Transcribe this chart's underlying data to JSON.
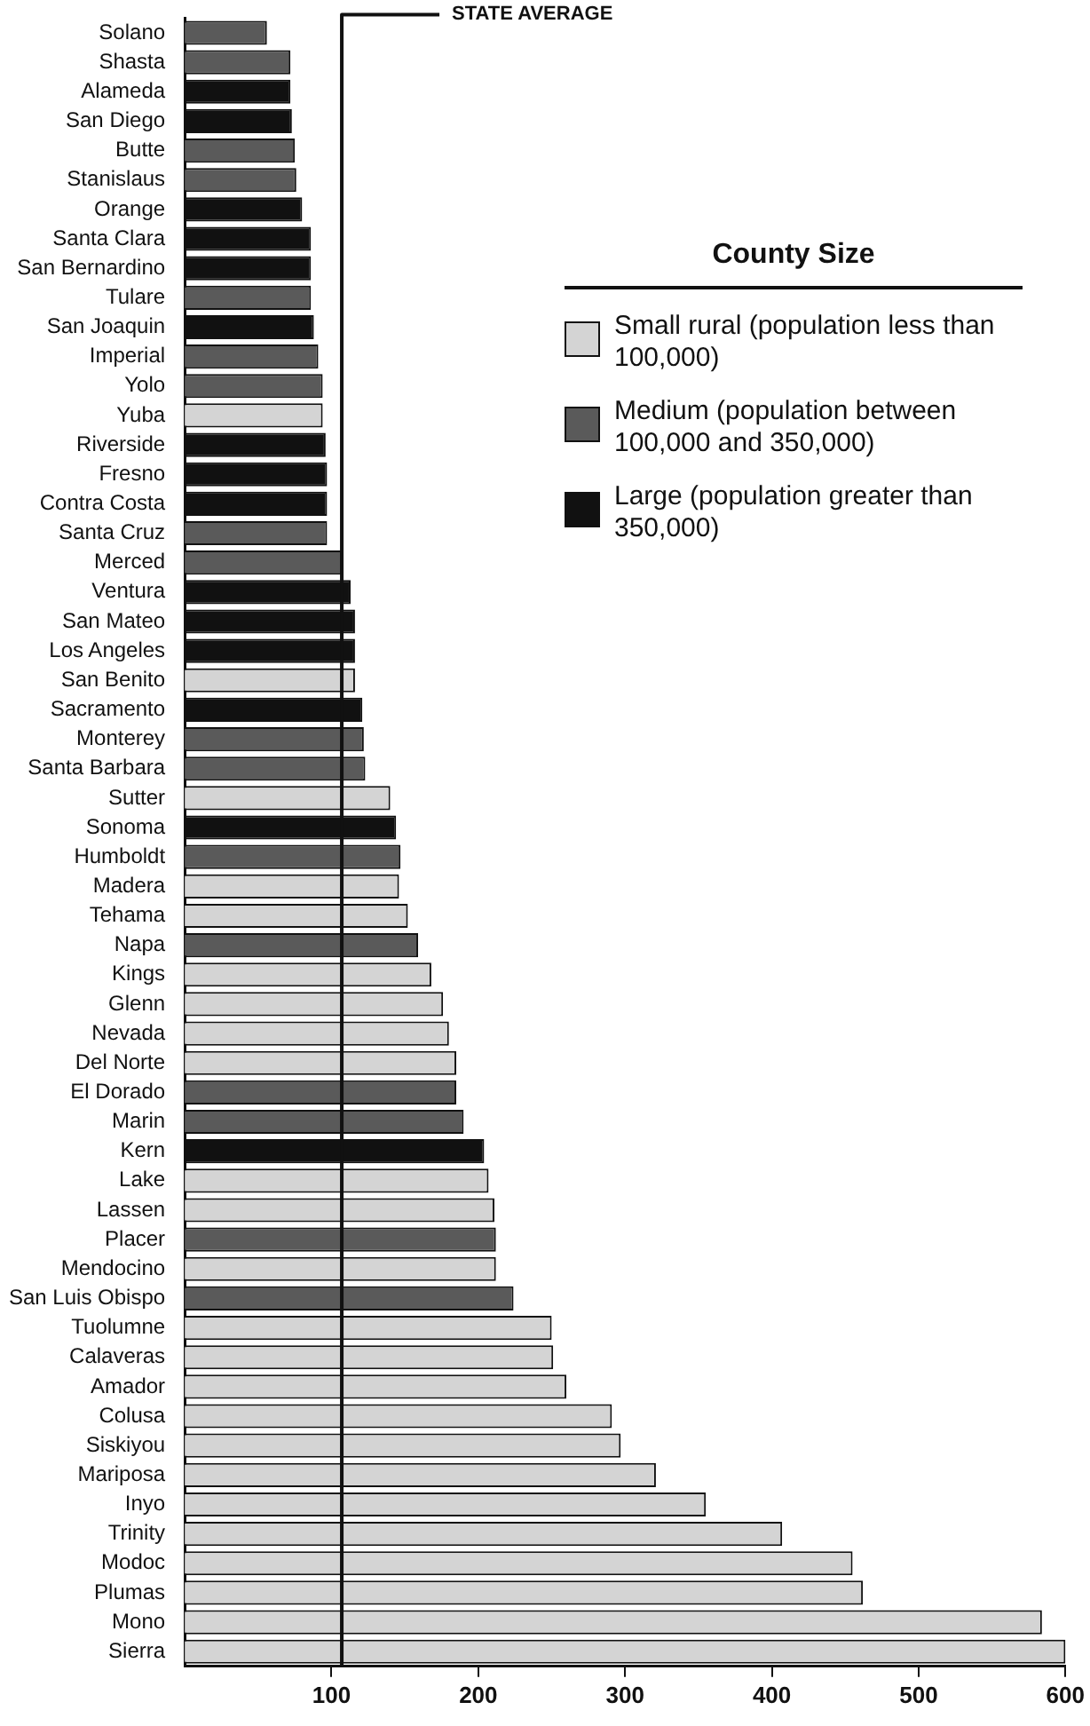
{
  "chart_data": {
    "type": "bar",
    "orientation": "horizontal",
    "legend_title": "County Size",
    "legend": "top right",
    "grid": false,
    "categories": [
      "Solano",
      "Shasta",
      "Alameda",
      "San Diego",
      "Butte",
      "Stanislaus",
      "Orange",
      "Santa Clara",
      "San Bernardino",
      "Tulare",
      "San Joaquin",
      "Imperial",
      "Yolo",
      "Yuba",
      "Riverside",
      "Fresno",
      "Contra Costa",
      "Santa Cruz",
      "Merced",
      "Ventura",
      "San Mateo",
      "Los Angeles",
      "San Benito",
      "Sacramento",
      "Monterey",
      "Santa Barbara",
      "Sutter",
      "Sonoma",
      "Humboldt",
      "Madera",
      "Tehama",
      "Napa",
      "Kings",
      "Glenn",
      "Nevada",
      "Del Norte",
      "El Dorado",
      "Marin",
      "Kern",
      "Lake",
      "Lassen",
      "Placer",
      "Mendocino",
      "San Luis Obispo",
      "Tuolumne",
      "Calaveras",
      "Amador",
      "Colusa",
      "Siskiyou",
      "Mariposa",
      "Inyo",
      "Trinity",
      "Modoc",
      "Plumas",
      "Mono",
      "Sierra"
    ],
    "series": [
      {
        "name": "Small rural (population less than 100,000)",
        "color": "#d4d4d4",
        "values": [
          null,
          null,
          null,
          null,
          null,
          null,
          null,
          null,
          null,
          null,
          null,
          null,
          null,
          94,
          null,
          null,
          null,
          null,
          null,
          null,
          null,
          null,
          116,
          null,
          null,
          null,
          140,
          null,
          null,
          146,
          152,
          null,
          168,
          176,
          180,
          185,
          null,
          null,
          null,
          207,
          211,
          null,
          212,
          null,
          250,
          251,
          260,
          291,
          297,
          321,
          355,
          407,
          455,
          462,
          584,
          600
        ]
      },
      {
        "name": "Medium (population between 100,000 and 350,000)",
        "color": "#5a5a5a",
        "values": [
          56,
          72,
          null,
          null,
          75,
          76,
          null,
          null,
          null,
          86,
          null,
          91,
          94,
          null,
          null,
          null,
          null,
          97,
          107,
          null,
          null,
          null,
          null,
          null,
          122,
          123,
          null,
          null,
          147,
          null,
          null,
          159,
          null,
          null,
          null,
          null,
          185,
          190,
          null,
          null,
          null,
          212,
          null,
          224,
          null,
          null,
          null,
          null,
          null,
          null,
          null,
          null,
          null,
          null,
          null,
          null
        ]
      },
      {
        "name": "Large (population greater than 350,000)",
        "color": "#111111",
        "values": [
          null,
          null,
          72,
          73,
          null,
          null,
          80,
          86,
          86,
          null,
          88,
          null,
          null,
          null,
          96,
          97,
          97,
          null,
          null,
          113,
          116,
          116,
          null,
          121,
          null,
          null,
          null,
          144,
          null,
          null,
          null,
          null,
          null,
          null,
          null,
          null,
          null,
          null,
          204,
          null,
          null,
          null,
          null,
          null,
          null,
          null,
          null,
          null,
          null,
          null,
          null,
          null,
          null,
          null,
          null,
          null
        ]
      }
    ],
    "xlim": [
      0,
      600
    ],
    "xticks": [
      100,
      200,
      300,
      400,
      500,
      600
    ],
    "ref_lines": [
      {
        "axis": "x",
        "value": 107,
        "label": "STATE AVERAGE"
      }
    ]
  }
}
